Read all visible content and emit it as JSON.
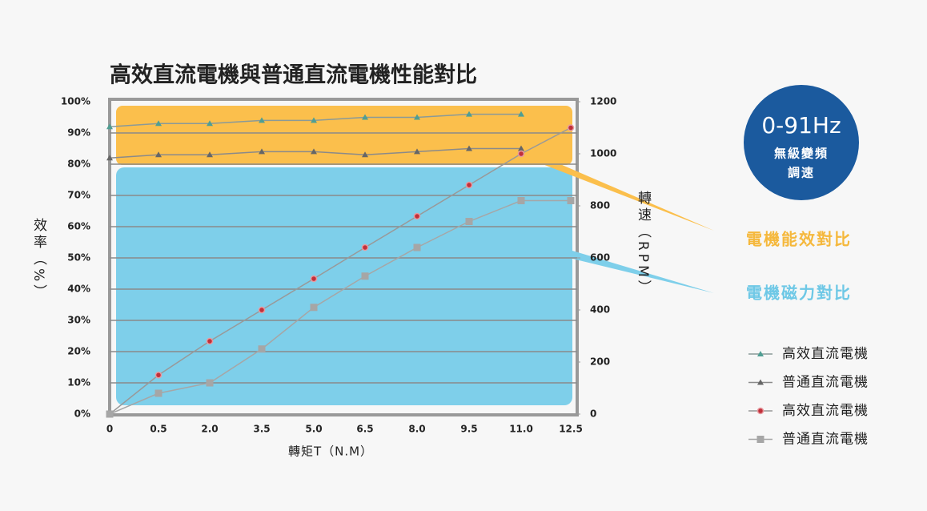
{
  "chart_data": {
    "type": "line",
    "title": "高效直流電機與普通直流電機性能對比",
    "y_label": "效率（%）",
    "y2_label": "轉速（RPM）",
    "x_label": "轉矩T（N.M）",
    "categories": [
      "0",
      "0.5",
      "2.0",
      "3.5",
      "5.0",
      "6.5",
      "8.0",
      "9.5",
      "11.0",
      "12.5"
    ],
    "ylim": [
      0,
      100
    ],
    "yticks": [
      {
        "value": 0,
        "label": "0%"
      },
      {
        "value": 10,
        "label": "10%"
      },
      {
        "value": 20,
        "label": "20%"
      },
      {
        "value": 30,
        "label": "30%"
      },
      {
        "value": 40,
        "label": "40%"
      },
      {
        "value": 50,
        "label": "50%"
      },
      {
        "value": 60,
        "label": "60%"
      },
      {
        "value": 70,
        "label": "70%"
      },
      {
        "value": 80,
        "label": "80%"
      },
      {
        "value": 90,
        "label": "90%"
      },
      {
        "value": 100,
        "label": "100%"
      }
    ],
    "y2lim": [
      0,
      1200
    ],
    "y2ticks": [
      0,
      200,
      400,
      600,
      800,
      1000,
      1200
    ],
    "grid": true,
    "series": [
      {
        "name": "高效直流電機",
        "color": "#4f9e93",
        "line_color": "#8a9a98",
        "marker": "triangle",
        "values": [
          92,
          93,
          93,
          94,
          94,
          95,
          95,
          96,
          96,
          null
        ]
      },
      {
        "name": "普通直流電機",
        "color": "#666666",
        "line_color": "#8a8a8a",
        "marker": "triangle",
        "values": [
          82,
          83,
          83,
          84,
          84,
          83,
          84,
          85,
          85,
          null
        ]
      },
      {
        "name": "高效直流電機",
        "color": "#c0303a",
        "line_color": "#999999",
        "marker": "circle",
        "axis": "y2",
        "values": [
          0,
          150,
          280,
          400,
          520,
          640,
          760,
          880,
          1000,
          1100
        ]
      },
      {
        "name": "普通直流電機",
        "color": "#a6a6a6",
        "line_color": "#a6a6a6",
        "marker": "square",
        "axis": "y2",
        "values": [
          0,
          80,
          120,
          250,
          410,
          530,
          640,
          740,
          820,
          820
        ]
      }
    ],
    "annotations": [
      "電機能效對比",
      "電機磁力對比"
    ],
    "badge": {
      "title": "0-91Hz",
      "lines": [
        "無級變頻",
        "調速"
      ]
    }
  }
}
